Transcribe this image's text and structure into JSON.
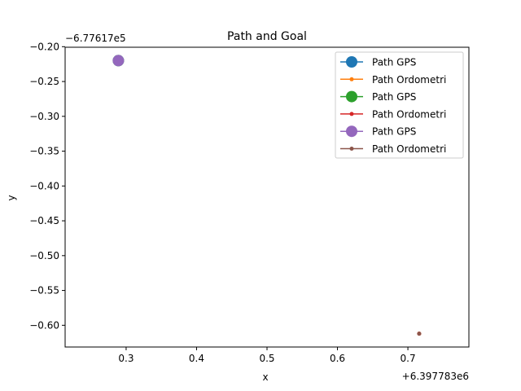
{
  "chart_data": {
    "type": "line",
    "title": "Path and Goal",
    "xlabel": "x",
    "ylabel": "y",
    "x_offset_label": "+6.397783e6",
    "y_offset_label": "−6.77617e5",
    "xlim": [
      0.2134,
      0.7866
    ],
    "ylim": [
      -0.6312,
      -0.2008
    ],
    "x_ticks": [
      0.3,
      0.4,
      0.5,
      0.6,
      0.7
    ],
    "x_tick_labels": [
      "0.3",
      "0.4",
      "0.5",
      "0.6",
      "0.7"
    ],
    "y_ticks": [
      -0.2,
      -0.25,
      -0.3,
      -0.35,
      -0.4,
      -0.45,
      -0.5,
      -0.55,
      -0.6
    ],
    "y_tick_labels": [
      "−0.20",
      "−0.25",
      "−0.30",
      "−0.35",
      "−0.40",
      "−0.45",
      "−0.50",
      "−0.55",
      "−0.60"
    ],
    "grid": false,
    "legend_position": "top-right",
    "series": [
      {
        "name": "Path GPS",
        "color": "#1f77b4",
        "marker": "large",
        "x": [
          0.289
        ],
        "y": [
          -0.22
        ]
      },
      {
        "name": "Path Ordometri",
        "color": "#ff7f0e",
        "marker": "small",
        "x": [
          0.716
        ],
        "y": [
          -0.612
        ]
      },
      {
        "name": "Path GPS",
        "color": "#2ca02c",
        "marker": "large",
        "x": [
          0.289
        ],
        "y": [
          -0.22
        ]
      },
      {
        "name": "Path Ordometri",
        "color": "#d62728",
        "marker": "small",
        "x": [
          0.716
        ],
        "y": [
          -0.612
        ]
      },
      {
        "name": "Path GPS",
        "color": "#9467bd",
        "marker": "large",
        "x": [
          0.289
        ],
        "y": [
          -0.22
        ]
      },
      {
        "name": "Path Ordometri",
        "color": "#8c564b",
        "marker": "small",
        "x": [
          0.716
        ],
        "y": [
          -0.612
        ]
      }
    ]
  }
}
